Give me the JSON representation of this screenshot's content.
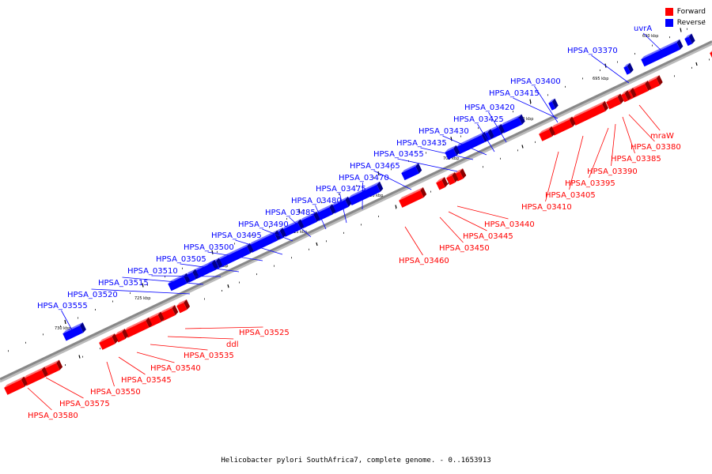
{
  "legend": [
    {
      "label": "Forward",
      "color": "#ff0000"
    },
    {
      "label": "Reverse",
      "color": "#0000ff"
    }
  ],
  "caption": "Helicobacter pylori SouthAfrica7, complete genome. - 0..1653913",
  "colors": {
    "forward": "#ff0000",
    "reverse": "#0000ff",
    "backbone": "#888888"
  },
  "ticks": [
    "690 kbp",
    "695 kbp",
    "700 kbp",
    "705 kbp",
    "710 kbp",
    "715 kbp",
    "720 kbp",
    "725 kbp",
    "730 kbp"
  ],
  "reverse_labels": [
    "uvrA",
    "HPSA_03370",
    "HPSA_03400",
    "HPSA_03415",
    "HPSA_03420",
    "HPSA_03425",
    "HPSA_03430",
    "HPSA_03435",
    "HPSA_03455",
    "HPSA_03465",
    "HPSA_03470",
    "HPSA_03475",
    "HPSA_03480",
    "HPSA_03485",
    "HPSA_03490",
    "HPSA_03495",
    "HPSA_03500",
    "HPSA_03505",
    "HPSA_03510",
    "HPSA_03515",
    "HPSA_03520",
    "HPSA_03555"
  ],
  "forward_labels": [
    "mraW",
    "HPSA_03380",
    "HPSA_03385",
    "HPSA_03390",
    "HPSA_03395",
    "HPSA_03405",
    "HPSA_03410",
    "HPSA_03440",
    "HPSA_03445",
    "HPSA_03450",
    "HPSA_03460",
    "HPSA_03525",
    "ddl",
    "HPSA_03535",
    "HPSA_03540",
    "HPSA_03545",
    "HPSA_03550",
    "HPSA_03575",
    "HPSA_03580"
  ]
}
